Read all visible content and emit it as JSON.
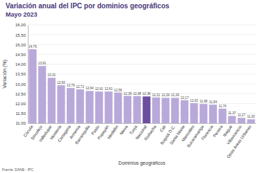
{
  "chart_data": {
    "type": "bar",
    "title": "Variación anual del IPC por dominios geográficos",
    "subtitle": "Mayo 2023",
    "x_label": "Dominios geográficos",
    "y_label": "Variación (%)",
    "source": "Fuente: DANE - IPC",
    "categories": [
      "Cúcuta",
      "Sincelejo",
      "Valledupar",
      "Montería",
      "Cartagena",
      "Armenia",
      "Barranquilla",
      "Pasto",
      "Popayán",
      "Medellín",
      "Neiva",
      "Tunja",
      "Nacional",
      "Riohacha",
      "Cali",
      "Bogotá D.C.",
      "Santa Marta",
      "Manizales",
      "Bucaramanga",
      "Florencia",
      "Pereira",
      "Ibagué",
      "Villavicencio",
      "Otras Áreas Urbanas"
    ],
    "values": [
      14.76,
      13.91,
      13.31,
      12.93,
      12.79,
      12.72,
      12.64,
      12.61,
      12.61,
      12.56,
      12.39,
      12.38,
      12.36,
      12.31,
      12.29,
      12.29,
      12.17,
      12.02,
      11.98,
      11.94,
      11.74,
      11.37,
      11.27,
      11.2
    ],
    "value_labels": [
      "14,76",
      "13,91",
      "13,31",
      "12,93",
      "12,79",
      "12,72",
      "12,64",
      "12,61",
      "12,61",
      "12,56",
      "12,39",
      "12,38",
      "12,36",
      "12,31",
      "12,29",
      "12,29",
      "12,17",
      "12,02",
      "11,98",
      "11,94",
      "11,74",
      "11,37",
      "11,27",
      "11,20"
    ],
    "colors": [
      "#b9a9da",
      "#b9a9da",
      "#b9a9da",
      "#b9a9da",
      "#b9a9da",
      "#b9a9da",
      "#b9a9da",
      "#b9a9da",
      "#b9a9da",
      "#b9a9da",
      "#b9a9da",
      "#b9a9da",
      "#6b4f9e",
      "#b9a9da",
      "#b9a9da",
      "#b9a9da",
      "#b9a9da",
      "#b9a9da",
      "#b9a9da",
      "#b9a9da",
      "#b9a9da",
      "#b9a9da",
      "#b9a9da",
      "#b9a9da"
    ],
    "ylim": [
      11,
      16
    ],
    "yticks": [
      {
        "value": 11,
        "label": "11,00"
      },
      {
        "value": 11.5,
        "label": "11,50"
      },
      {
        "value": 12,
        "label": "12,00"
      },
      {
        "value": 12.5,
        "label": "12,50"
      },
      {
        "value": 13,
        "label": "13,00"
      },
      {
        "value": 13.5,
        "label": "13,50"
      },
      {
        "value": 14,
        "label": "14,00"
      },
      {
        "value": 14.5,
        "label": "14,50"
      },
      {
        "value": 15,
        "label": "15,00"
      },
      {
        "value": 15.5,
        "label": "15,50"
      },
      {
        "value": 16,
        "label": "16,00"
      }
    ],
    "grid": true,
    "data_labels": true
  }
}
